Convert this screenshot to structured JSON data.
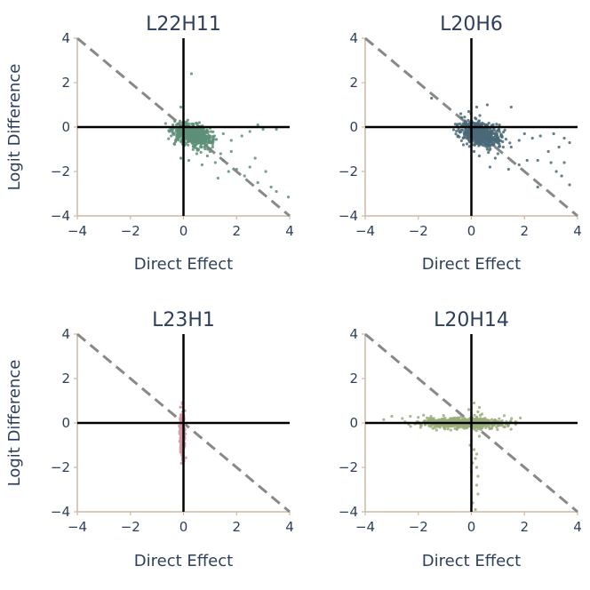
{
  "figure": {
    "y_axis_label": "Logit Difference",
    "x_axis_label": "Direct Effect"
  },
  "chart_data": [
    {
      "type": "scatter",
      "title": "L22H11",
      "xlabel": "Direct Effect",
      "ylabel": "Logit Difference",
      "xlim": [
        -4,
        4
      ],
      "ylim": [
        -4,
        4
      ],
      "xticks": [
        -4,
        -2,
        0,
        2,
        4
      ],
      "yticks": [
        -4,
        -2,
        0,
        2,
        4
      ],
      "color": "#5e8f78",
      "reference_line": {
        "slope": -1,
        "intercept": 0,
        "style": "dashed",
        "color": "#888888"
      },
      "cluster": {
        "count": 700,
        "center": [
          0.35,
          -0.35
        ],
        "spread": [
          0.35,
          0.22
        ],
        "tilt": -0.3
      },
      "points": [
        [
          0.3,
          2.4
        ],
        [
          -0.1,
          0.9
        ],
        [
          0.6,
          0.2
        ],
        [
          1.0,
          -0.05
        ],
        [
          1.5,
          -0.3
        ],
        [
          1.8,
          -0.6
        ],
        [
          2.2,
          -0.4
        ],
        [
          2.5,
          -0.2
        ],
        [
          2.8,
          0.1
        ],
        [
          3.0,
          -0.1
        ],
        [
          3.5,
          -0.1
        ],
        [
          0.5,
          -1.2
        ],
        [
          0.2,
          -1.5
        ],
        [
          -0.1,
          -1.4
        ],
        [
          0.9,
          -1.3
        ],
        [
          1.2,
          -1.6
        ],
        [
          1.5,
          -1.5
        ],
        [
          1.3,
          -2.3
        ],
        [
          1.7,
          -2.0
        ],
        [
          2.0,
          -1.9
        ],
        [
          2.3,
          -2.2
        ],
        [
          2.5,
          -1.8
        ],
        [
          1.8,
          -1.1
        ],
        [
          2.8,
          -2.5
        ],
        [
          3.1,
          -2.0
        ],
        [
          3.3,
          -2.7
        ],
        [
          3.5,
          -2.9
        ],
        [
          3.95,
          -3.15
        ],
        [
          0.4,
          -0.9
        ],
        [
          0.8,
          -0.9
        ],
        [
          1.1,
          -0.9
        ],
        [
          -0.3,
          -0.6
        ],
        [
          -0.4,
          0.1
        ],
        [
          0.7,
          -1.7
        ],
        [
          1.0,
          -1.1
        ],
        [
          1.4,
          -1.2
        ],
        [
          2.7,
          -1.4
        ]
      ]
    },
    {
      "type": "scatter",
      "title": "L20H6",
      "xlabel": "Direct Effect",
      "ylabel": "",
      "xlim": [
        -4,
        4
      ],
      "ylim": [
        -4,
        4
      ],
      "xticks": [
        -4,
        -2,
        0,
        2,
        4
      ],
      "yticks": [
        -4,
        -2,
        0,
        2,
        4
      ],
      "color": "#4a6a78",
      "reference_line": {
        "slope": -1,
        "intercept": 0,
        "style": "dashed",
        "color": "#888888"
      },
      "cluster": {
        "count": 650,
        "center": [
          0.35,
          -0.3
        ],
        "spread": [
          0.35,
          0.25
        ],
        "tilt": -0.3
      },
      "points": [
        [
          -0.1,
          0.7
        ],
        [
          -0.4,
          0.6
        ],
        [
          0.2,
          0.9
        ],
        [
          0.6,
          1.0
        ],
        [
          -1.5,
          1.3
        ],
        [
          1.5,
          0.9
        ],
        [
          -0.3,
          -0.8
        ],
        [
          0.1,
          -1.1
        ],
        [
          0.3,
          -1.3
        ],
        [
          0.6,
          -1.0
        ],
        [
          0.9,
          -1.4
        ],
        [
          1.2,
          -0.9
        ],
        [
          1.5,
          -0.9
        ],
        [
          1.8,
          -0.6
        ],
        [
          2.0,
          -0.3
        ],
        [
          2.3,
          -0.5
        ],
        [
          2.6,
          -0.4
        ],
        [
          3.1,
          -0.3
        ],
        [
          3.5,
          -0.5
        ],
        [
          3.7,
          -0.7
        ],
        [
          3.3,
          -0.9
        ],
        [
          2.9,
          -1.1
        ],
        [
          2.5,
          -1.5
        ],
        [
          3.0,
          -1.6
        ],
        [
          3.5,
          -1.6
        ],
        [
          2.5,
          -2.7
        ],
        [
          3.2,
          -2.0
        ],
        [
          3.4,
          -2.2
        ],
        [
          3.7,
          -2.6
        ],
        [
          1.4,
          -1.9
        ],
        [
          1.8,
          -1.7
        ],
        [
          2.1,
          -1.5
        ],
        [
          0.7,
          -1.8
        ],
        [
          1.0,
          -1.2
        ],
        [
          -0.5,
          -0.4
        ],
        [
          0.4,
          -0.8
        ]
      ]
    },
    {
      "type": "scatter",
      "title": "L23H1",
      "xlabel": "Direct Effect",
      "ylabel": "Logit Difference",
      "xlim": [
        -4,
        4
      ],
      "ylim": [
        -4,
        4
      ],
      "xticks": [
        -4,
        -2,
        0,
        2,
        4
      ],
      "yticks": [
        -4,
        -2,
        0,
        2,
        4
      ],
      "color": "#d497a6",
      "reference_line": {
        "slope": -1,
        "intercept": 0,
        "style": "dashed",
        "color": "#888888"
      },
      "cluster": {
        "count": 450,
        "center": [
          -0.04,
          -0.5
        ],
        "spread": [
          0.04,
          0.45
        ],
        "tilt": 0
      },
      "points": [
        [
          -0.05,
          0.25
        ],
        [
          0.02,
          0.2
        ],
        [
          -0.08,
          -1.3
        ],
        [
          0.0,
          -1.45
        ],
        [
          -0.04,
          -1.6
        ],
        [
          0.02,
          -1.7
        ],
        [
          -0.02,
          -1.2
        ],
        [
          -0.1,
          -1.0
        ],
        [
          0.03,
          -0.9
        ]
      ]
    },
    {
      "type": "scatter",
      "title": "L20H14",
      "xlabel": "Direct Effect",
      "ylabel": "",
      "xlim": [
        -4,
        4
      ],
      "ylim": [
        -4,
        4
      ],
      "xticks": [
        -4,
        -2,
        0,
        2,
        4
      ],
      "yticks": [
        -4,
        -2,
        0,
        2,
        4
      ],
      "color": "#9aae7c",
      "reference_line": {
        "slope": -1,
        "intercept": 0,
        "style": "dashed",
        "color": "#888888"
      },
      "cluster": {
        "count": 650,
        "center": [
          -0.35,
          0.0
        ],
        "spread": [
          0.75,
          0.12
        ],
        "tilt": 0
      },
      "points": [
        [
          -3.0,
          0.3
        ],
        [
          -2.6,
          0.2
        ],
        [
          -2.3,
          0.3
        ],
        [
          -2.0,
          0.25
        ],
        [
          -2.5,
          0.05
        ],
        [
          -3.3,
          0.15
        ],
        [
          -1.8,
          0.35
        ],
        [
          0.1,
          0.9
        ],
        [
          0.3,
          0.7
        ],
        [
          -0.1,
          0.6
        ],
        [
          0.25,
          0.5
        ],
        [
          0.4,
          0.4
        ],
        [
          0.6,
          0.1
        ],
        [
          1.0,
          0.05
        ],
        [
          1.3,
          -0.05
        ],
        [
          0.8,
          -0.1
        ],
        [
          0.0,
          -0.8
        ],
        [
          0.1,
          -1.2
        ],
        [
          0.15,
          -1.6
        ],
        [
          0.2,
          -2.0
        ],
        [
          0.25,
          -2.4
        ],
        [
          0.2,
          -2.8
        ],
        [
          0.25,
          -3.2
        ],
        [
          0.15,
          -3.9
        ],
        [
          0.05,
          -3.6
        ],
        [
          0.0,
          -2.2
        ],
        [
          0.2,
          -1.4
        ],
        [
          -0.05,
          -1.0
        ],
        [
          0.05,
          -1.8
        ],
        [
          0.3,
          -0.6
        ]
      ]
    }
  ]
}
